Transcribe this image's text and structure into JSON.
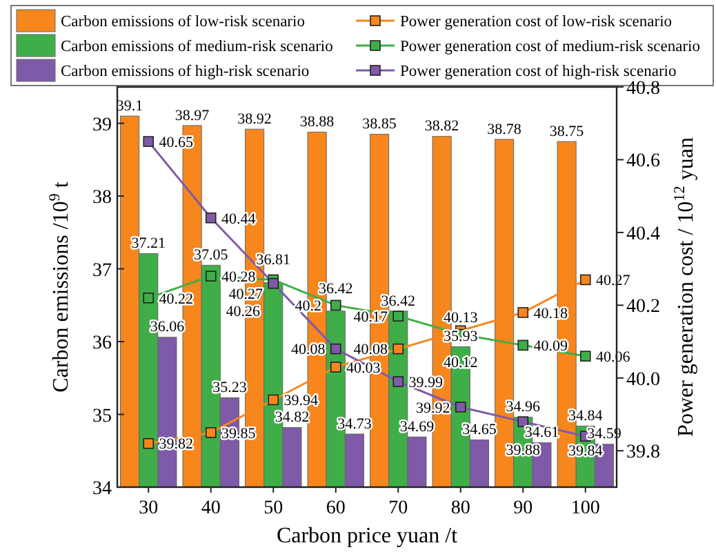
{
  "chart_data": {
    "type": "bar",
    "xlabel": "Carbon price yuan /t",
    "ylabel": "Carbon emissions /10$^{9}$ t",
    "y2label": "Power generation cost / 10$^{12}$ yuan",
    "categories": [
      "30",
      "40",
      "50",
      "60",
      "70",
      "80",
      "90",
      "100"
    ],
    "series": [
      {
        "name": "Carbon emissions of low-risk scenario",
        "color": "#f7861c",
        "values": [
          39.1,
          38.97,
          38.92,
          38.88,
          38.85,
          38.82,
          38.78,
          38.75
        ]
      },
      {
        "name": "Carbon emissions of medium-risk scenario",
        "color": "#3fae49",
        "values": [
          37.21,
          37.05,
          36.81,
          36.42,
          36.42,
          35.93,
          34.96,
          34.84
        ]
      },
      {
        "name": "Carbon emissions of high-risk scenario",
        "color": "#7f5aa8",
        "values": [
          36.06,
          35.23,
          34.82,
          34.73,
          34.69,
          34.65,
          34.61,
          34.59
        ]
      },
      {
        "name": "Power generation cost of low-risk scenario",
        "type": "line",
        "axis": "y2",
        "color": "#f7861c",
        "values": [
          39.82,
          39.85,
          39.94,
          40.03,
          40.08,
          40.13,
          40.18,
          40.27
        ]
      },
      {
        "name": "Power generation cost of medium-risk scenario",
        "type": "line",
        "axis": "y2",
        "color": "#3fae49",
        "values": [
          40.22,
          40.28,
          40.27,
          40.2,
          40.17,
          40.12,
          40.09,
          40.06
        ]
      },
      {
        "name": "Power generation cost of high-risk scenario",
        "type": "line",
        "axis": "y2",
        "color": "#7f5aa8",
        "values": [
          40.65,
          40.44,
          40.26,
          40.08,
          39.99,
          39.92,
          39.88,
          39.84
        ]
      }
    ],
    "ylim": [
      34,
      39.5
    ],
    "yticks": [
      34,
      35,
      36,
      37,
      38,
      39
    ],
    "y2lim": [
      39.7,
      40.8
    ],
    "y2ticks": [
      {
        "value": 39.8,
        "label": "39.8"
      },
      {
        "value": 40,
        "label": "40.0"
      },
      {
        "value": 40.2,
        "label": "40.2"
      },
      {
        "value": 40.4,
        "label": "40.4"
      },
      {
        "value": 40.6,
        "label": "40.6"
      },
      {
        "value": 40.8,
        "label": "40.8"
      }
    ],
    "marker": "square",
    "legend": "top",
    "data_labels": true
  }
}
